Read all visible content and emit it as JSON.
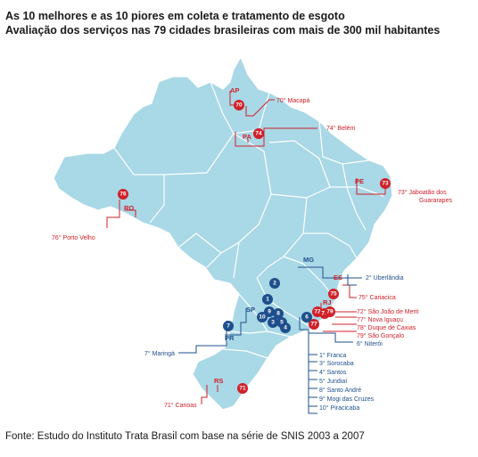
{
  "title": {
    "line1": "As 10 melhores e as 10 piores em coleta e tratamento de esgoto",
    "line2": "Avaliação dos serviços nas 79 cidades brasileiras com mais de 300 mil habitantes"
  },
  "source": "Fonte: Estudo do Instituto Trata Brasil com base na série de SNIS 2003 a 2007",
  "colors": {
    "map_fill": "#a9d8e6",
    "map_border": "#ffffff",
    "worst": "#d0202a",
    "best": "#1e4f8c"
  },
  "states": {
    "ap": "AP",
    "pa": "PA",
    "pe": "PE",
    "ro": "RO",
    "mg": "MG",
    "es": "ES",
    "rj": "RJ",
    "sp": "SP",
    "pr": "PR",
    "rs": "RS"
  },
  "worst": {
    "macapa": "70° Macapá",
    "belem": "74° Belém",
    "jaboatao": "73° Jaboatão dos Guararapes",
    "jaboatao_l1": "73° Jaboatão dos",
    "jaboatao_l2": "Guararapes",
    "porto_velho": "76° Porto Velho",
    "cariacica": "75° Cariacica",
    "sao_joao": "72° São João de Merit",
    "nova_iguacu": "77° Nova Iguaçu",
    "duque": "78° Duque de Caxias",
    "sao_goncalo": "79° São Gonçalo",
    "canoas": "71° Canoas"
  },
  "best": {
    "uberlandia": "2° Uberlândia",
    "niteroi": "6° Niterói",
    "maringa": "7° Maringá",
    "franca": "1° Franca",
    "sorocaba": "3° Sorocaba",
    "santos": "4° Santos",
    "jundiai": "5° Jundiaí",
    "santo_andre": "8° Santo André",
    "mogi": "9° Mogi das Cruzes",
    "piracicaba": "10° Piracicaba"
  },
  "markers": {
    "m70": "70",
    "m74": "74",
    "m73": "73",
    "m76": "76",
    "m75": "75",
    "m72": "72",
    "m77": "77",
    "m78": "78",
    "m79": "79",
    "m71": "71",
    "b1": "1",
    "b2": "2",
    "b3": "3",
    "b4": "4",
    "b5": "5",
    "b6": "6",
    "b7": "7",
    "b8": "8",
    "b9": "9",
    "b10": "10"
  }
}
